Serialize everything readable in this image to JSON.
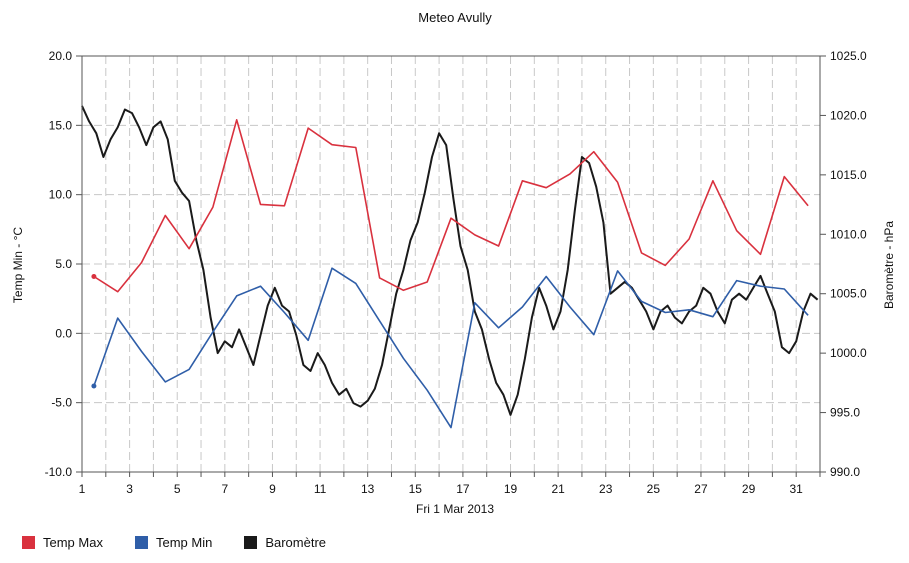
{
  "chart_data": {
    "type": "line",
    "title": "Meteo  Avully",
    "xlabel": "Fri 1 Mar 2013",
    "ylabel_left": "Temp Min - °C",
    "ylabel_right": "Baromètre - hPa",
    "ylim_left": [
      -10,
      20
    ],
    "ylim_right": [
      990,
      1025
    ],
    "xlim": [
      1,
      32
    ],
    "x_ticks": [
      1,
      3,
      5,
      7,
      9,
      11,
      13,
      15,
      17,
      19,
      21,
      23,
      25,
      27,
      29,
      31
    ],
    "y_ticks_left": [
      "20.0",
      "15.0",
      "10.0",
      "5.0",
      "0.0",
      "-5.0",
      "-10.0"
    ],
    "y_ticks_right": [
      "1025.0",
      "1020.0",
      "1015.0",
      "1010.0",
      "1005.0",
      "1000.0",
      "995.0",
      "990.0"
    ],
    "grid": true,
    "legend_position": "bottom-left",
    "series": [
      {
        "name": "Temp Max",
        "color": "#d9313e",
        "axis": "left",
        "x": [
          1.5,
          2.5,
          3.5,
          4.5,
          5.5,
          6.5,
          7.5,
          8.5,
          9.5,
          10.5,
          11.5,
          12.5,
          13.5,
          14.5,
          15.5,
          16.5,
          17.5,
          18.5,
          19.5,
          20.5,
          21.5,
          22.5,
          23.5,
          24.5,
          25.5,
          26.5,
          27.5,
          28.5,
          29.5,
          30.5,
          31.5
        ],
        "values": [
          4.1,
          3.0,
          5.1,
          8.5,
          6.1,
          9.1,
          15.4,
          9.3,
          9.2,
          14.8,
          13.6,
          13.4,
          4.0,
          3.1,
          3.7,
          8.3,
          7.1,
          6.3,
          11.0,
          10.5,
          11.5,
          13.1,
          10.9,
          5.8,
          4.9,
          6.8,
          11.0,
          7.4,
          5.7,
          11.3,
          9.2
        ]
      },
      {
        "name": "Temp Min",
        "color": "#2f5ea8",
        "axis": "left",
        "x": [
          1.5,
          2.5,
          3.5,
          4.5,
          5.5,
          6.5,
          7.5,
          8.5,
          9.5,
          10.5,
          11.5,
          12.5,
          13.5,
          14.5,
          15.5,
          16.5,
          17.5,
          18.5,
          19.5,
          20.5,
          21.5,
          22.5,
          23.5,
          24.5,
          25.5,
          26.5,
          27.5,
          28.5,
          29.5,
          30.5,
          31.5
        ],
        "values": [
          -3.8,
          1.1,
          -1.3,
          -3.5,
          -2.6,
          0.1,
          2.7,
          3.4,
          1.5,
          -0.5,
          4.7,
          3.6,
          0.9,
          -1.8,
          -4.1,
          -6.8,
          2.2,
          0.4,
          1.9,
          4.1,
          1.9,
          -0.1,
          4.5,
          2.3,
          1.5,
          1.7,
          1.2,
          3.8,
          3.4,
          3.2,
          1.3
        ]
      },
      {
        "name": "Baromètre",
        "color": "#1a1a1a",
        "axis": "right",
        "x": [
          1.0,
          1.3,
          1.6,
          1.9,
          2.2,
          2.5,
          2.8,
          3.1,
          3.4,
          3.7,
          4.0,
          4.3,
          4.6,
          4.9,
          5.2,
          5.5,
          5.8,
          6.1,
          6.4,
          6.7,
          7.0,
          7.3,
          7.6,
          7.9,
          8.2,
          8.5,
          8.8,
          9.1,
          9.4,
          9.7,
          10.0,
          10.3,
          10.6,
          10.9,
          11.2,
          11.5,
          11.8,
          12.1,
          12.4,
          12.7,
          13.0,
          13.3,
          13.6,
          13.9,
          14.2,
          14.5,
          14.8,
          15.1,
          15.4,
          15.7,
          16.0,
          16.3,
          16.6,
          16.9,
          17.2,
          17.5,
          17.8,
          18.1,
          18.4,
          18.7,
          19.0,
          19.3,
          19.6,
          19.9,
          20.2,
          20.5,
          20.8,
          21.1,
          21.4,
          21.7,
          22.0,
          22.3,
          22.6,
          22.9,
          23.2,
          23.5,
          23.8,
          24.1,
          24.4,
          24.7,
          25.0,
          25.3,
          25.6,
          25.9,
          26.2,
          26.5,
          26.8,
          27.1,
          27.4,
          27.7,
          28.0,
          28.3,
          28.6,
          28.9,
          29.2,
          29.5,
          29.8,
          30.1,
          30.4,
          30.7,
          31.0,
          31.3,
          31.6,
          31.9
        ],
        "values": [
          1020.8,
          1019.5,
          1018.5,
          1016.5,
          1018.0,
          1019.0,
          1020.5,
          1020.2,
          1019.0,
          1017.5,
          1019.0,
          1019.5,
          1018.0,
          1014.5,
          1013.5,
          1012.8,
          1009.5,
          1007.0,
          1003.0,
          1000.0,
          1001.0,
          1000.5,
          1002.0,
          1000.5,
          999.0,
          1001.5,
          1004.0,
          1005.5,
          1004.0,
          1003.5,
          1001.5,
          999.0,
          998.5,
          1000.0,
          999.0,
          997.5,
          996.5,
          997.0,
          995.8,
          995.5,
          996.0,
          997.0,
          999.0,
          1002.0,
          1005.0,
          1007.0,
          1009.5,
          1011.0,
          1013.5,
          1016.5,
          1018.5,
          1017.5,
          1013.0,
          1009.0,
          1007.0,
          1003.5,
          1002.0,
          999.5,
          997.5,
          996.5,
          994.8,
          996.5,
          999.5,
          1003.0,
          1005.5,
          1004.0,
          1002.0,
          1003.5,
          1007.0,
          1012.0,
          1016.5,
          1016.0,
          1014.0,
          1011.0,
          1005.0,
          1005.5,
          1006.0,
          1005.5,
          1004.5,
          1003.5,
          1002.0,
          1003.5,
          1004.0,
          1003.0,
          1002.5,
          1003.5,
          1004.0,
          1005.5,
          1005.0,
          1003.5,
          1002.5,
          1004.5,
          1005.0,
          1004.5,
          1005.5,
          1006.5,
          1005.0,
          1003.5,
          1000.5,
          1000.0,
          1001.0,
          1003.5,
          1005.0,
          1004.5
        ]
      }
    ]
  }
}
